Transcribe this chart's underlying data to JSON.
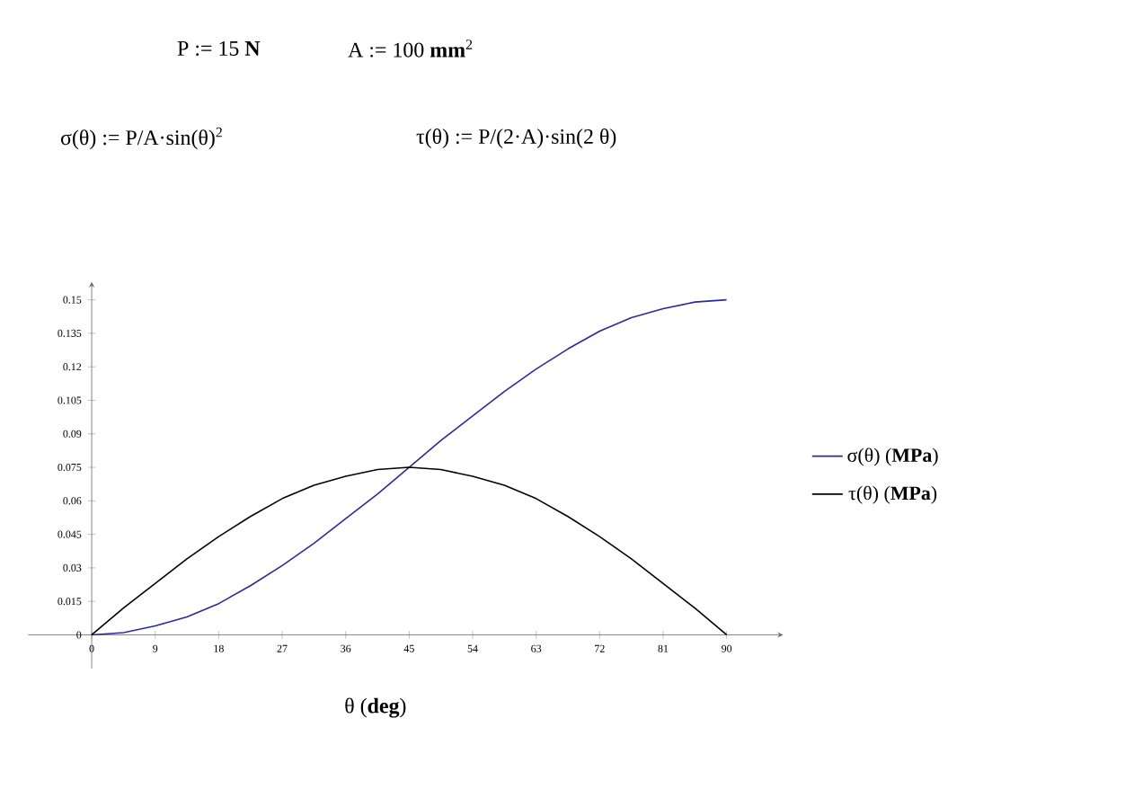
{
  "chart_data": {
    "type": "line",
    "annotations": [
      "P := 15 **N**",
      "A := 100 **mm**$^{2}$",
      "σ(θ) := P/A·sin(θ)$^{2}$",
      "τ(θ) := P/(2·A)·sin(2 θ)"
    ],
    "xlabel": "θ (**deg**)",
    "x": [
      0,
      4.5,
      9,
      13.5,
      18,
      22.5,
      27,
      31.5,
      36,
      40.5,
      45,
      49.5,
      54,
      58.5,
      63,
      67.5,
      72,
      76.5,
      81,
      85.5,
      90
    ],
    "series": [
      {
        "name": "σ(θ) (**MPa**)",
        "color": "#2a2aa0",
        "values": [
          0,
          0.001,
          0.004,
          0.008,
          0.014,
          0.022,
          0.031,
          0.041,
          0.052,
          0.063,
          0.075,
          0.087,
          0.098,
          0.109,
          0.119,
          0.128,
          0.136,
          0.142,
          0.146,
          0.149,
          0.15
        ]
      },
      {
        "name": "τ(θ) (**MPa**)",
        "color": "#000000",
        "values": [
          0,
          0.012,
          0.023,
          0.034,
          0.044,
          0.053,
          0.061,
          0.067,
          0.071,
          0.074,
          0.075,
          0.074,
          0.071,
          0.067,
          0.061,
          0.053,
          0.044,
          0.034,
          0.023,
          0.012,
          0
        ]
      }
    ],
    "xlim": [
      -9,
      98
    ],
    "ylim": [
      -0.015,
      0.158
    ],
    "xticks": [
      0,
      9,
      18,
      27,
      36,
      45,
      54,
      63,
      72,
      81,
      90
    ],
    "yticks": [
      0,
      0.015,
      0.03,
      0.045,
      0.06,
      0.075,
      0.09,
      0.105,
      0.12,
      0.135,
      0.15
    ],
    "legend": "right",
    "grid": false,
    "marker": "none",
    "line_style": "solid"
  }
}
